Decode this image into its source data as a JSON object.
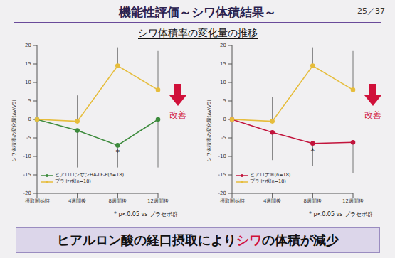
{
  "header": {
    "title": "機能性評価～シワ体積結果～",
    "page": "25／37"
  },
  "subtitle": "シワ体積率の変化量の推移",
  "chart_data": [
    {
      "type": "line",
      "ylabel": "シワ体積率の変化量(ΔV/V0)",
      "categories": [
        "摂取開始時",
        "4週間後",
        "8週間後",
        "12週間後"
      ],
      "ylim": [
        -20,
        20
      ],
      "yticks": [
        -20,
        -15,
        -10,
        -5,
        0,
        5,
        10,
        15,
        20
      ],
      "grid": false,
      "legend": "lower left",
      "series": [
        {
          "name": "ヒアロロンサンHA-LF-P(n=18)",
          "color": "#3d8b3d",
          "marker": "circle",
          "values": [
            0,
            -3,
            -7,
            0
          ],
          "error": [
            [
              0,
              0
            ],
            [
              10,
              0
            ],
            [
              6,
              0
            ],
            [
              13,
              0
            ]
          ]
        },
        {
          "name": "プラセボ(n=18)",
          "color": "#e6bd3c",
          "marker": "circle",
          "values": [
            0,
            -0.5,
            14.5,
            8
          ],
          "error": [
            [
              0,
              0
            ],
            [
              0,
              7
            ],
            [
              0,
              5
            ],
            [
              0,
              10.5
            ]
          ]
        }
      ],
      "annotations": [
        {
          "text": "*",
          "category": "8週間後",
          "series": 0
        }
      ],
      "note": "* p<0.05 vs プラセボ群",
      "arrow_label": "改善"
    },
    {
      "type": "line",
      "ylabel": "シワ体積率の変化量(ΔV/V0)",
      "categories": [
        "摂取開始時",
        "4週間後",
        "8週間後",
        "12週間後"
      ],
      "ylim": [
        -20,
        20
      ],
      "yticks": [
        -20,
        -15,
        -10,
        -5,
        0,
        5,
        10,
        15,
        20
      ],
      "grid": false,
      "legend": "lower left",
      "series": [
        {
          "name": "ヒアロナ®(n=18)",
          "color": "#c2143c",
          "marker": "circle",
          "values": [
            0,
            -3.5,
            -6.5,
            -6.2
          ],
          "error": [
            [
              0,
              0
            ],
            [
              7.5,
              0
            ],
            [
              6,
              0
            ],
            [
              8.3,
              0
            ]
          ]
        },
        {
          "name": "プラセボ(n=18)",
          "color": "#e6bd3c",
          "marker": "circle",
          "values": [
            0,
            -0.5,
            14.5,
            8
          ],
          "error": [
            [
              0,
              0
            ],
            [
              0,
              6.5
            ],
            [
              0,
              5
            ],
            [
              0,
              10.5
            ]
          ]
        }
      ],
      "annotations": [
        {
          "text": "*",
          "category": "8週間後",
          "series": 0
        }
      ],
      "note": "* p<0.05 vs プラセボ群",
      "arrow_label": "改善"
    }
  ],
  "footer": {
    "segments": [
      {
        "text": "ヒアルロン酸の経口摂取により",
        "color": "#111111"
      },
      {
        "text": "シワ",
        "color": "#d0103a"
      },
      {
        "text": "の体積が減少",
        "color": "#111111"
      }
    ]
  }
}
